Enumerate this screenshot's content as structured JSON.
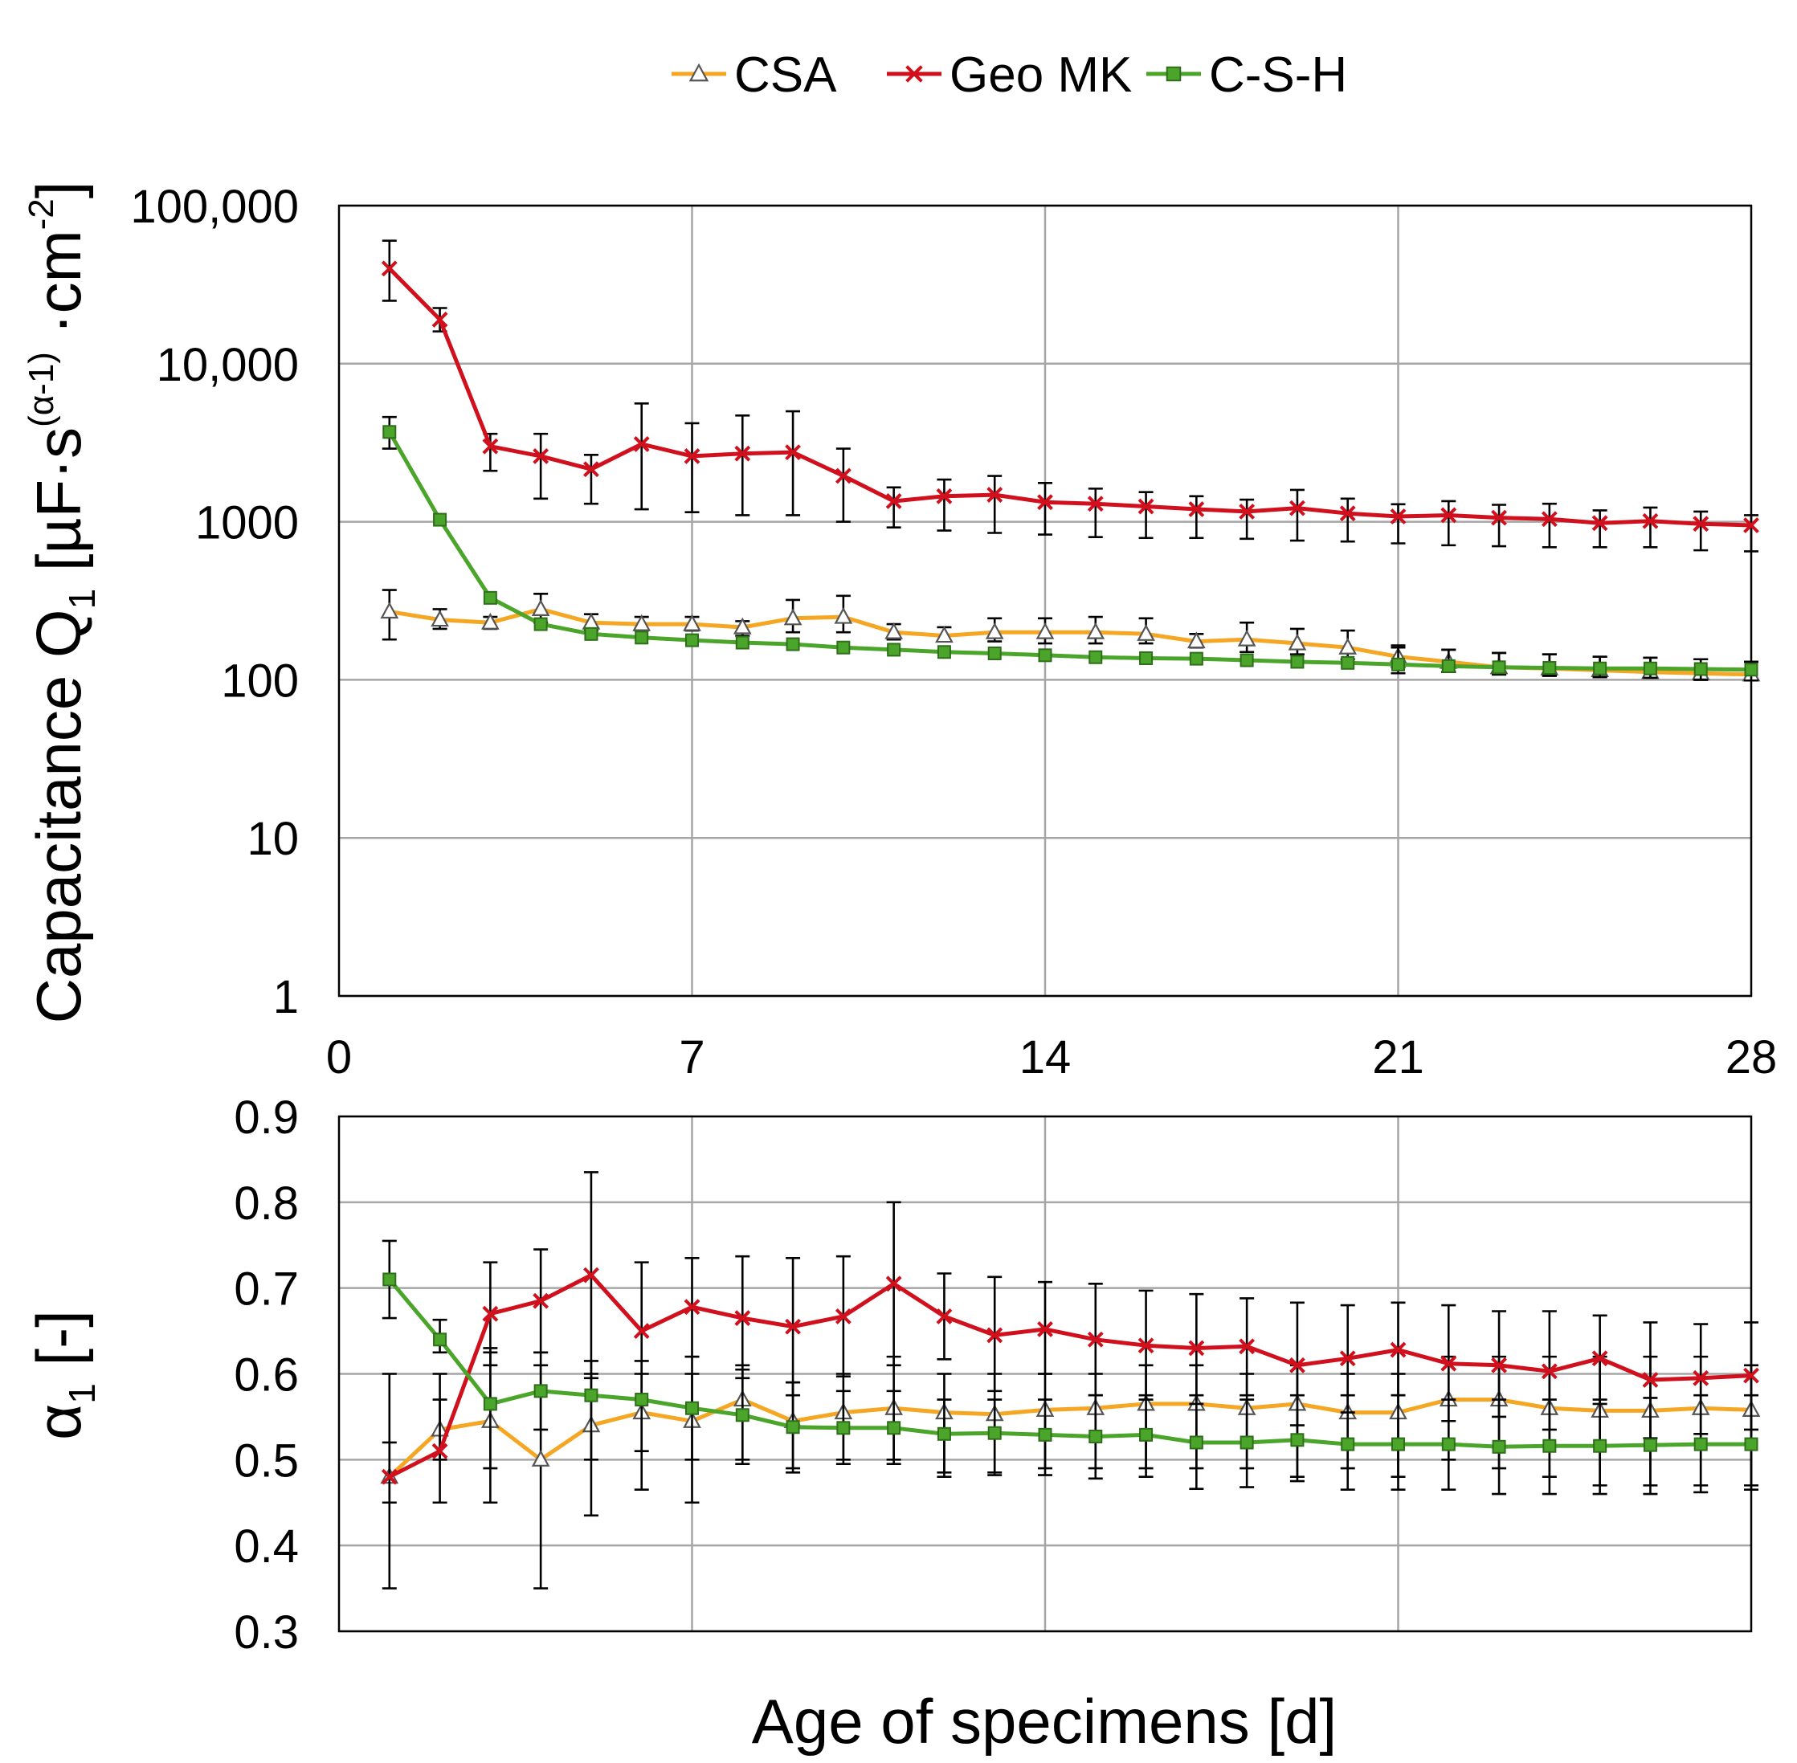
{
  "legend": [
    {
      "key": "csa",
      "label": "CSA",
      "marker": "triangle",
      "color": "#f5a623"
    },
    {
      "key": "geo",
      "label": "Geo MK",
      "marker": "x",
      "color": "#d0101c"
    },
    {
      "key": "csh",
      "label": "C-S-H",
      "marker": "square",
      "color": "#4aa52a"
    }
  ],
  "axes": {
    "top_ylabel": "Capacitance Q",
    "top_ylabel_sub": "1",
    "top_ylabel_unit_a": " [µF·s",
    "top_ylabel_exp": "(α-1)",
    "top_ylabel_unit_b": " ·cm",
    "top_ylabel_exp2": "-2",
    "top_ylabel_close": "]",
    "bottom_ylabel": "α",
    "bottom_ylabel_sub": "1",
    "bottom_ylabel_unit": " [-]",
    "xlabel": "Age of specimens [d]"
  },
  "chart_data": [
    {
      "type": "line",
      "name": "capacitance",
      "yscale": "log",
      "xlim": [
        0,
        28
      ],
      "ylim": [
        1,
        100000
      ],
      "xticks": [
        0,
        7,
        14,
        21,
        28
      ],
      "xtick_labels": [
        "0",
        "7",
        "14",
        "21",
        "28"
      ],
      "yticks": [
        1,
        10,
        100,
        1000,
        10000,
        100000
      ],
      "ytick_labels": [
        "1",
        "10",
        "100",
        "1000",
        "10,000",
        "100,000"
      ],
      "grid": true,
      "x": [
        1,
        2,
        3,
        4,
        5,
        6,
        7,
        8,
        9,
        10,
        11,
        12,
        13,
        14,
        15,
        16,
        17,
        18,
        19,
        20,
        21,
        22,
        23,
        24,
        25,
        26,
        27,
        28
      ],
      "series": [
        {
          "key": "csa",
          "name": "CSA",
          "values": [
            270,
            240,
            230,
            280,
            230,
            225,
            225,
            215,
            245,
            250,
            200,
            190,
            200,
            200,
            200,
            195,
            175,
            180,
            170,
            160,
            140,
            130,
            120,
            118,
            115,
            112,
            110,
            108
          ],
          "err_low": [
            180,
            210,
            210,
            230,
            205,
            205,
            205,
            190,
            200,
            200,
            180,
            175,
            175,
            170,
            170,
            170,
            160,
            150,
            145,
            135,
            120,
            112,
            108,
            106,
            104,
            103,
            100,
            99
          ],
          "err_high": [
            370,
            280,
            250,
            350,
            260,
            250,
            250,
            235,
            320,
            340,
            225,
            215,
            245,
            245,
            250,
            245,
            195,
            230,
            210,
            205,
            165,
            155,
            148,
            145,
            140,
            138,
            135,
            130
          ]
        },
        {
          "key": "geo",
          "name": "Geo MK",
          "values": [
            40000,
            19000,
            3000,
            2600,
            2150,
            3100,
            2600,
            2700,
            2750,
            1950,
            1350,
            1450,
            1480,
            1330,
            1300,
            1250,
            1200,
            1160,
            1220,
            1130,
            1080,
            1100,
            1060,
            1040,
            980,
            1010,
            970,
            950
          ],
          "err_low": [
            25000,
            16000,
            2100,
            1400,
            1300,
            1200,
            1150,
            1100,
            1100,
            1000,
            920,
            880,
            850,
            830,
            800,
            790,
            790,
            780,
            760,
            750,
            730,
            710,
            700,
            690,
            690,
            690,
            660,
            650
          ],
          "err_high": [
            60000,
            22500,
            3600,
            3600,
            2650,
            5600,
            4200,
            4700,
            5000,
            2900,
            1650,
            1850,
            1950,
            1760,
            1620,
            1540,
            1450,
            1380,
            1590,
            1400,
            1290,
            1350,
            1280,
            1300,
            1180,
            1230,
            1160,
            1100
          ]
        },
        {
          "key": "csh",
          "name": "C-S-H",
          "values": [
            3700,
            1030,
            330,
            225,
            195,
            185,
            178,
            172,
            168,
            160,
            155,
            150,
            147,
            143,
            139,
            137,
            136,
            133,
            130,
            128,
            125,
            122,
            120,
            119,
            118,
            118,
            117,
            116
          ],
          "err_low": [
            2900,
            1030,
            330,
            225,
            195,
            185,
            178,
            172,
            168,
            160,
            155,
            150,
            147,
            143,
            139,
            137,
            136,
            133,
            130,
            128,
            110,
            112,
            108,
            106,
            104,
            103,
            100,
            99
          ],
          "err_high": [
            4600,
            1030,
            330,
            225,
            195,
            185,
            178,
            172,
            168,
            160,
            155,
            150,
            147,
            143,
            139,
            137,
            136,
            133,
            130,
            128,
            160,
            155,
            148,
            145,
            140,
            138,
            135,
            130
          ]
        }
      ]
    },
    {
      "type": "line",
      "name": "alpha",
      "yscale": "linear",
      "xlim": [
        0,
        28
      ],
      "ylim": [
        0.3,
        0.9
      ],
      "yticks": [
        0.3,
        0.4,
        0.5,
        0.6,
        0.7,
        0.8,
        0.9
      ],
      "ytick_labels": [
        "0.3",
        "0.4",
        "0.5",
        "0.6",
        "0.7",
        "0.8",
        "0.9"
      ],
      "grid": true,
      "x": [
        1,
        2,
        3,
        4,
        5,
        6,
        7,
        8,
        9,
        10,
        11,
        12,
        13,
        14,
        15,
        16,
        17,
        18,
        19,
        20,
        21,
        22,
        23,
        24,
        25,
        26,
        27,
        28
      ],
      "series": [
        {
          "key": "csa",
          "name": "CSA",
          "values": [
            0.48,
            0.535,
            0.545,
            0.5,
            0.54,
            0.555,
            0.545,
            0.57,
            0.545,
            0.555,
            0.56,
            0.555,
            0.553,
            0.558,
            0.56,
            0.565,
            0.565,
            0.56,
            0.565,
            0.555,
            0.555,
            0.57,
            0.57,
            0.56,
            0.557,
            0.557,
            0.56,
            0.558
          ],
          "err_low": [
            0.45,
            0.5,
            0.49,
            0.35,
            0.5,
            0.51,
            0.5,
            0.5,
            0.49,
            0.5,
            0.5,
            0.485,
            0.485,
            0.49,
            0.49,
            0.49,
            0.49,
            0.49,
            0.48,
            0.49,
            0.48,
            0.5,
            0.49,
            0.48,
            0.47,
            0.47,
            0.47,
            0.47
          ],
          "err_high": [
            0.52,
            0.57,
            0.63,
            0.61,
            0.6,
            0.6,
            0.6,
            0.61,
            0.59,
            0.6,
            0.62,
            0.6,
            0.6,
            0.6,
            0.6,
            0.61,
            0.61,
            0.6,
            0.61,
            0.6,
            0.6,
            0.62,
            0.62,
            0.62,
            0.62,
            0.62,
            0.62,
            0.61
          ]
        },
        {
          "key": "geo",
          "name": "Geo MK",
          "values": [
            0.48,
            0.51,
            0.67,
            0.685,
            0.715,
            0.65,
            0.678,
            0.665,
            0.655,
            0.667,
            0.705,
            0.667,
            0.645,
            0.652,
            0.64,
            0.633,
            0.63,
            0.632,
            0.61,
            0.618,
            0.628,
            0.612,
            0.61,
            0.603,
            0.618,
            0.593,
            0.595,
            0.598
          ],
          "err_low": [
            0.35,
            0.45,
            0.61,
            0.625,
            0.595,
            0.57,
            0.62,
            0.595,
            0.575,
            0.597,
            0.61,
            0.617,
            0.58,
            0.6,
            0.575,
            0.57,
            0.565,
            0.575,
            0.54,
            0.555,
            0.575,
            0.545,
            0.55,
            0.535,
            0.565,
            0.525,
            0.53,
            0.535
          ],
          "err_high": [
            0.6,
            0.6,
            0.73,
            0.745,
            0.835,
            0.73,
            0.735,
            0.737,
            0.735,
            0.737,
            0.8,
            0.717,
            0.713,
            0.707,
            0.705,
            0.697,
            0.693,
            0.688,
            0.683,
            0.68,
            0.683,
            0.68,
            0.673,
            0.673,
            0.668,
            0.66,
            0.658,
            0.66
          ]
        },
        {
          "key": "csh",
          "name": "C-S-H",
          "values": [
            0.71,
            0.64,
            0.565,
            0.58,
            0.575,
            0.57,
            0.56,
            0.552,
            0.538,
            0.537,
            0.537,
            0.53,
            0.531,
            0.529,
            0.527,
            0.529,
            0.52,
            0.52,
            0.523,
            0.518,
            0.518,
            0.518,
            0.515,
            0.516,
            0.516,
            0.517,
            0.518,
            0.518
          ],
          "err_low": [
            0.665,
            0.625,
            0.45,
            0.535,
            0.435,
            0.465,
            0.45,
            0.495,
            0.485,
            0.495,
            0.495,
            0.48,
            0.482,
            0.482,
            0.478,
            0.48,
            0.466,
            0.468,
            0.475,
            0.465,
            0.465,
            0.465,
            0.46,
            0.46,
            0.46,
            0.46,
            0.462,
            0.465
          ],
          "err_high": [
            0.755,
            0.663,
            0.625,
            0.625,
            0.615,
            0.615,
            0.62,
            0.605,
            0.59,
            0.58,
            0.58,
            0.57,
            0.57,
            0.57,
            0.575,
            0.575,
            0.575,
            0.57,
            0.575,
            0.575,
            0.575,
            0.57,
            0.57,
            0.57,
            0.57,
            0.572,
            0.575,
            0.575
          ]
        }
      ]
    }
  ]
}
